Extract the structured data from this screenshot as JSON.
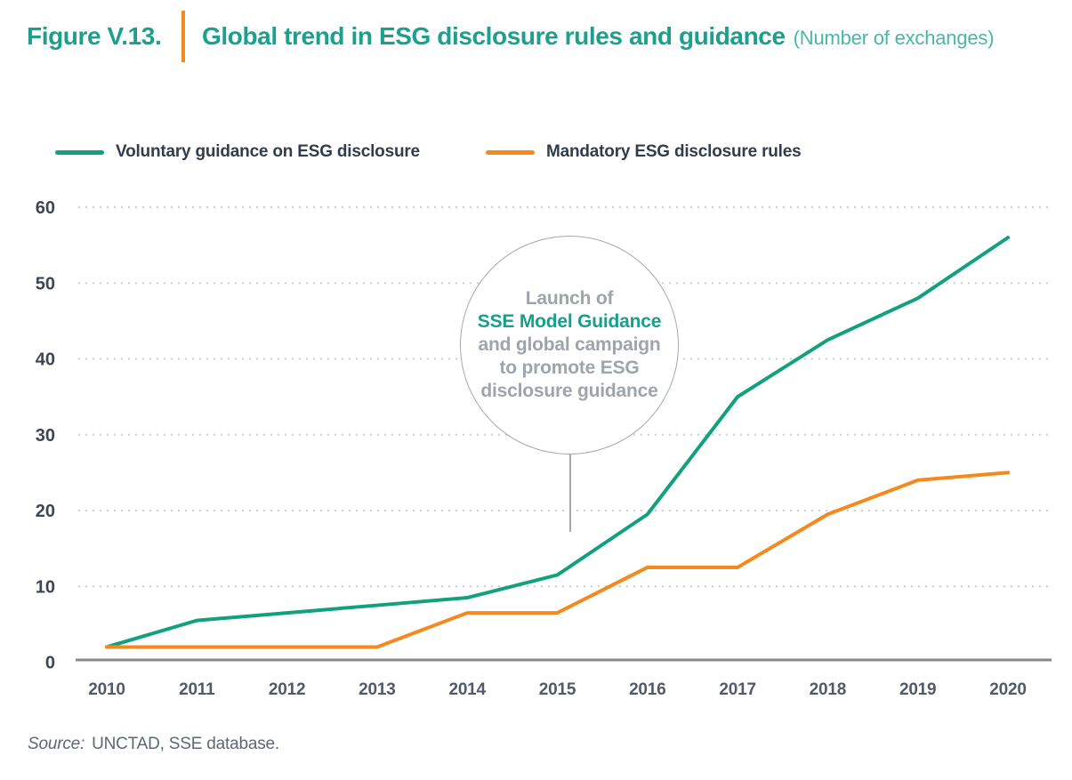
{
  "figure": {
    "label": "Figure V.13.",
    "title": "Global trend in ESG disclosure rules and guidance",
    "subtitle": "(Number of exchanges)"
  },
  "legend": [
    {
      "label": "Voluntary guidance on ESG disclosure",
      "color": "#12A17E"
    },
    {
      "label": "Mandatory ESG disclosure rules",
      "color": "#F6891E"
    }
  ],
  "annotation": {
    "line1": "Launch of",
    "line2": "SSE Model Guidance",
    "line3": "and global campaign",
    "line4": "to promote ESG",
    "line5": "disclosure guidance"
  },
  "source": {
    "prefix": "Source:",
    "text": "UNCTAD, SSE database."
  },
  "colors": {
    "title_teal": "#1CA08D",
    "subtitle_teal": "#4BB6A7",
    "divider_orange": "#F6891E",
    "voluntary_line": "#12A17E",
    "mandatory_line": "#F6891E",
    "annotation_gray": "#9EA4AC",
    "axis_gray": "#85888C",
    "gridline_gray": "#C9CCD2"
  },
  "chart_data": {
    "type": "line",
    "title": "Global trend in ESG disclosure rules and guidance",
    "subtitle": "Number of exchanges",
    "x": [
      2010,
      2011,
      2012,
      2013,
      2014,
      2015,
      2016,
      2017,
      2018,
      2019,
      2020
    ],
    "series": [
      {
        "id": "voluntary",
        "name": "Voluntary guidance on ESG disclosure",
        "color": "#12A17E",
        "values": [
          2,
          5.5,
          6.5,
          7.5,
          8.5,
          11.5,
          19.5,
          35,
          42.5,
          48,
          56
        ]
      },
      {
        "id": "mandatory",
        "name": "Mandatory ESG disclosure rules",
        "color": "#F6891E",
        "values": [
          2,
          2,
          2,
          2,
          6.5,
          6.5,
          12.5,
          12.5,
          19.5,
          24,
          25
        ]
      }
    ],
    "xlabel": "",
    "ylabel": "",
    "ylim": [
      0,
      60
    ],
    "yticks": [
      0,
      10,
      20,
      30,
      40,
      50,
      60
    ],
    "grid": "horizontal-dotted",
    "legend_position": "top-left",
    "annotation": "Launch of SSE Model Guidance and global campaign to promote ESG disclosure guidance (pointing between 2015 and 2016)"
  }
}
